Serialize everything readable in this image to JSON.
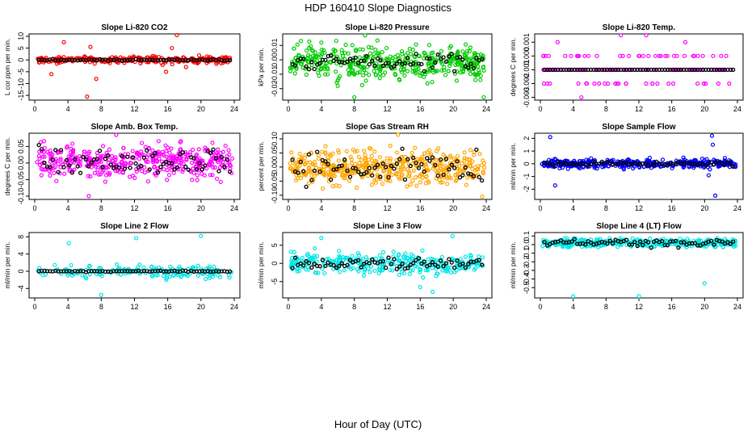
{
  "suptitle": "HDP  160410  Slope Diagnostics",
  "xlabel": "Hour of Day (UTC)",
  "chart_data": [
    {
      "type": "scatter",
      "title": "Slope Li-820 CO2",
      "ylabel": "L cor ppm per min.",
      "color": "#ff0000",
      "xlim": [
        0,
        24
      ],
      "x_ticks": [
        0,
        4,
        8,
        12,
        16,
        20,
        24
      ],
      "ylim": [
        -17,
        11
      ],
      "y_ticks": [
        10,
        5,
        0,
        -5,
        -10,
        -15
      ],
      "y_tick_labels": [
        "10",
        "5",
        "0",
        "-5",
        "-10",
        "-15"
      ],
      "pattern": {
        "base": 0,
        "spread": 1,
        "black_spread": 0.3,
        "n": 260,
        "outliers": [
          [
            3.5,
            7.5
          ],
          [
            6.3,
            -15.5
          ],
          [
            6.7,
            5.5
          ],
          [
            7.4,
            -8
          ],
          [
            2.0,
            -6
          ],
          [
            17.1,
            10.5
          ],
          [
            16.5,
            5
          ],
          [
            15.8,
            -5
          ],
          [
            18.2,
            -3
          ]
        ]
      }
    },
    {
      "type": "scatter",
      "title": "Slope Li-820 Pressure",
      "ylabel": "kPa per min.",
      "color": "#00cc00",
      "xlim": [
        0,
        24
      ],
      "x_ticks": [
        0,
        4,
        8,
        12,
        16,
        20,
        24
      ],
      "ylim": [
        -0.028,
        0.018
      ],
      "y_ticks": [
        0.01,
        0,
        -0.01,
        -0.02
      ],
      "y_tick_labels": [
        "0.01",
        "0.00",
        "-0.01",
        "-0.02"
      ],
      "pattern": {
        "base": -0.002,
        "spread": 0.008,
        "black_spread": 0.005,
        "n": 420,
        "outliers": [
          [
            8.0,
            -0.026
          ],
          [
            9.3,
            0.017
          ],
          [
            23.7,
            -0.026
          ],
          [
            4.0,
            0.012
          ]
        ]
      }
    },
    {
      "type": "scatter",
      "title": "Slope Li-820 Temp.",
      "ylabel": "degrees C per min.",
      "color": "#ff00ff",
      "xlim": [
        0,
        24
      ],
      "x_ticks": [
        0,
        4,
        8,
        12,
        16,
        20,
        24
      ],
      "ylim": [
        -0.0032,
        0.0016
      ],
      "y_ticks": [
        0.001,
        0,
        -0.001,
        -0.002,
        -0.003
      ],
      "y_tick_labels": [
        "0.001",
        "0.000",
        "-0.001",
        "-0.002",
        "-0.003"
      ],
      "pattern": {
        "base": -0.001,
        "spread": 0.0009,
        "black_spread": 0.0001,
        "n": 150,
        "quantized": 0.001,
        "outliers": [
          [
            9.8,
            0.0015
          ],
          [
            12.9,
            0.0015
          ],
          [
            5.0,
            -0.003
          ]
        ]
      }
    },
    {
      "type": "scatter",
      "title": "Slope Amb. Box Temp.",
      "ylabel": "degrees C per min.",
      "color": "#ff00ff",
      "xlim": [
        0,
        24
      ],
      "x_ticks": [
        0,
        4,
        8,
        12,
        16,
        20,
        24
      ],
      "ylim": [
        -0.11,
        0.09
      ],
      "y_ticks": [
        0.05,
        0,
        -0.05,
        -0.1
      ],
      "y_tick_labels": [
        "0.05",
        "0.00",
        "-0.05",
        "-0.10"
      ],
      "pattern": {
        "base": 0.005,
        "spread": 0.035,
        "black_spread": 0.03,
        "n": 420,
        "outliers": [
          [
            6.5,
            -0.1
          ],
          [
            9.8,
            0.085
          ]
        ]
      }
    },
    {
      "type": "scatter",
      "title": "Slope Gas Stream RH",
      "ylabel": "percent per min.",
      "color": "#ffa500",
      "xlim": [
        0,
        24
      ],
      "x_ticks": [
        0,
        4,
        8,
        12,
        16,
        20,
        24
      ],
      "ylim": [
        -0.115,
        0.12
      ],
      "y_ticks": [
        0.1,
        0.05,
        0,
        -0.05,
        -0.1
      ],
      "y_tick_labels": [
        "0.10",
        "0.05",
        "0.00",
        "-0.05",
        "-0.10"
      ],
      "pattern": {
        "base": 0,
        "spread": 0.04,
        "black_spread": 0.045,
        "n": 460,
        "outliers": [
          [
            13.3,
            0.115
          ],
          [
            23.5,
            -0.105
          ]
        ]
      }
    },
    {
      "type": "scatter",
      "title": "Slope Sample Flow",
      "ylabel": "ml/min per min.",
      "color": "#0000ff",
      "xlim": [
        0,
        24
      ],
      "x_ticks": [
        0,
        4,
        8,
        12,
        16,
        20,
        24
      ],
      "ylim": [
        -2.8,
        2.4
      ],
      "y_ticks": [
        2,
        1,
        0,
        -1,
        -2
      ],
      "y_tick_labels": [
        "2",
        "1",
        "0",
        "-1",
        "-2"
      ],
      "pattern": {
        "base": 0,
        "spread": 0.25,
        "black_spread": 0.12,
        "n": 360,
        "outliers": [
          [
            1.2,
            2.1
          ],
          [
            1.8,
            -1.7
          ],
          [
            20.9,
            2.2
          ],
          [
            21.3,
            -2.5
          ],
          [
            20.5,
            -0.9
          ],
          [
            21.0,
            1.5
          ]
        ]
      }
    },
    {
      "type": "scatter",
      "title": "Slope Line 2 Flow",
      "ylabel": "ml/min per min.",
      "color": "#00e5e5",
      "xlim": [
        0,
        24
      ],
      "x_ticks": [
        0,
        4,
        8,
        12,
        16,
        20,
        24
      ],
      "ylim": [
        -6.2,
        9
      ],
      "y_ticks": [
        8,
        4,
        0,
        -4
      ],
      "y_tick_labels": [
        "8",
        "4",
        "0",
        "-4"
      ],
      "pattern": {
        "base": 0,
        "spread": 1.0,
        "black_spread": 0.1,
        "n": 170,
        "outliers": [
          [
            4.1,
            6.5
          ],
          [
            8.0,
            -5.5
          ],
          [
            12.2,
            7.7
          ],
          [
            20.0,
            8.2
          ]
        ]
      }
    },
    {
      "type": "scatter",
      "title": "Slope Line 3 Flow",
      "ylabel": "ml/min per min.",
      "color": "#00e5e5",
      "xlim": [
        0,
        24
      ],
      "x_ticks": [
        0,
        4,
        8,
        12,
        16,
        20,
        24
      ],
      "ylim": [
        -9.5,
        8.5
      ],
      "y_ticks": [
        5,
        0,
        -5
      ],
      "y_tick_labels": [
        "5",
        "0",
        "-5"
      ],
      "pattern": {
        "base": 0,
        "spread": 2.0,
        "black_spread": 1.2,
        "n": 320,
        "outliers": [
          [
            17.5,
            -7.8
          ],
          [
            4.0,
            7.0
          ],
          [
            19.9,
            7.5
          ],
          [
            16.0,
            -6.5
          ]
        ]
      }
    },
    {
      "type": "scatter",
      "title": "Slope Line 4 (LT) Flow",
      "ylabel": "ml/min per min.",
      "color": "#00e5e5",
      "xlim": [
        0,
        24
      ],
      "x_ticks": [
        0,
        4,
        8,
        12,
        16,
        20,
        24
      ],
      "ylim": [
        -0.62,
        0.14
      ],
      "y_ticks": [
        0.1,
        0,
        -0.1,
        -0.2,
        -0.3,
        -0.4,
        -0.5
      ],
      "y_tick_labels": [
        "0.1",
        "0.0",
        "-0.1",
        "-0.2",
        "-0.3",
        "-0.4",
        "-0.5"
      ],
      "pattern": {
        "base": 0.02,
        "spread": 0.035,
        "black_spread": 0.03,
        "n": 330,
        "outliers": [
          [
            4.0,
            -0.6
          ],
          [
            12.0,
            -0.6
          ],
          [
            20.0,
            -0.45
          ]
        ]
      }
    }
  ]
}
